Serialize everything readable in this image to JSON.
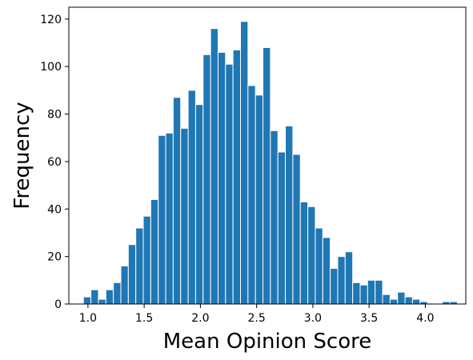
{
  "chart_data": {
    "type": "bar",
    "title": "",
    "xlabel": "Mean Opinion Score",
    "ylabel": "Frequency",
    "bar_color": "#1f77b4",
    "grid": false,
    "xlim": [
      0.83,
      4.36
    ],
    "ylim": [
      0,
      125
    ],
    "xticks": [
      1.0,
      1.5,
      2.0,
      2.5,
      3.0,
      3.5,
      4.0
    ],
    "xtick_labels": [
      "1.0",
      "1.5",
      "2.0",
      "2.5",
      "3.0",
      "3.5",
      "4.0"
    ],
    "yticks": [
      0,
      20,
      40,
      60,
      80,
      100,
      120
    ],
    "ytick_labels": [
      "0",
      "20",
      "40",
      "60",
      "80",
      "100",
      "120"
    ],
    "bin_start": 0.96,
    "bin_width": 0.0665,
    "values": [
      3,
      6,
      2,
      6,
      9,
      16,
      25,
      32,
      37,
      44,
      71,
      72,
      87,
      74,
      90,
      84,
      105,
      116,
      106,
      101,
      107,
      119,
      92,
      88,
      108,
      73,
      64,
      75,
      63,
      43,
      41,
      32,
      28,
      15,
      20,
      22,
      9,
      8,
      10,
      10,
      4,
      2,
      5,
      3,
      2,
      1,
      0,
      0,
      1,
      1
    ]
  }
}
